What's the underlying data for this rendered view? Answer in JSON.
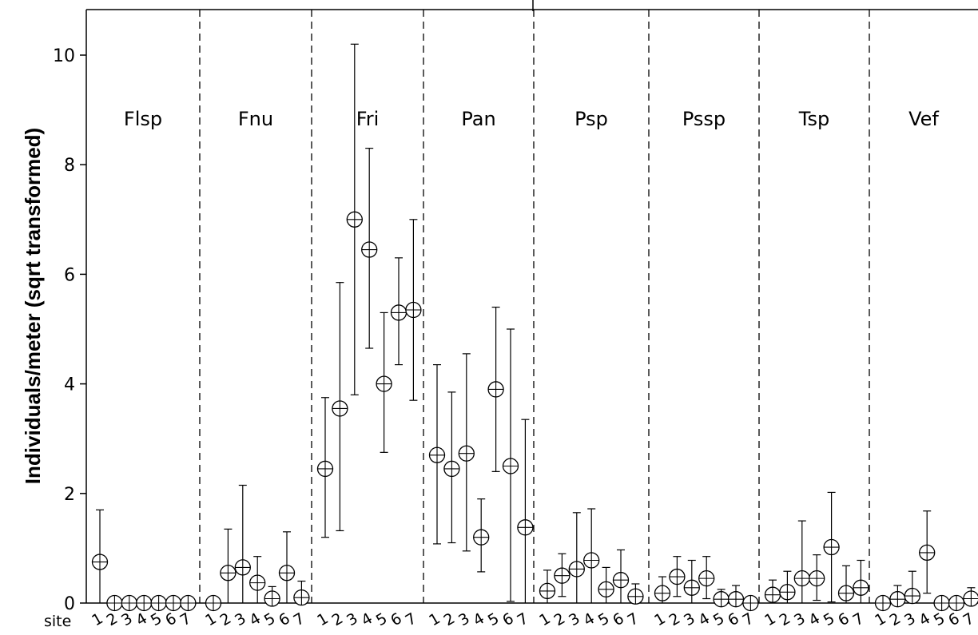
{
  "chart_data": {
    "type": "scatter",
    "title": "",
    "xlabel": "",
    "ylabel": "Individuals/meter  (sqrt transformed)",
    "x_axis_prefix": "site",
    "sites": [
      "1",
      "2",
      "3",
      "4",
      "5",
      "6",
      "7"
    ],
    "ylim": [
      0,
      10.9
    ],
    "yticks": [
      0,
      2,
      4,
      6,
      8,
      10
    ],
    "grid": false,
    "marker": "circled-plus with error bars",
    "panels": [
      {
        "name": "Flsp",
        "values": [
          0.75,
          0,
          0,
          0,
          0,
          0,
          0
        ],
        "upper": [
          1.7,
          0,
          0,
          0,
          0,
          0,
          0
        ],
        "lower": [
          0,
          0,
          0,
          0,
          0,
          0,
          0
        ]
      },
      {
        "name": "Fnu",
        "values": [
          0,
          0.55,
          0.65,
          0.37,
          0.08,
          0.55,
          0.1
        ],
        "upper": [
          0,
          1.35,
          2.15,
          0.85,
          0.3,
          1.3,
          0.4
        ],
        "lower": [
          0,
          0,
          0,
          0,
          0,
          0,
          0
        ]
      },
      {
        "name": "Fri",
        "values": [
          2.45,
          3.55,
          7.0,
          6.45,
          4.0,
          5.3,
          5.35
        ],
        "upper": [
          3.75,
          5.85,
          10.2,
          8.3,
          5.3,
          6.3,
          7.0
        ],
        "lower": [
          1.2,
          1.32,
          3.8,
          4.65,
          2.75,
          4.35,
          3.7
        ]
      },
      {
        "name": "Pan",
        "values": [
          2.7,
          2.45,
          2.73,
          1.2,
          3.9,
          2.5,
          1.38
        ],
        "upper": [
          4.35,
          3.85,
          4.55,
          1.9,
          5.4,
          5.0,
          3.35
        ],
        "lower": [
          1.08,
          1.1,
          0.95,
          0.57,
          2.4,
          0.03,
          0
        ]
      },
      {
        "name": "Psp",
        "values": [
          0.22,
          0.5,
          0.62,
          0.78,
          0.25,
          0.42,
          0.12
        ],
        "upper": [
          0.6,
          0.9,
          1.65,
          1.72,
          0.65,
          0.97,
          0.35
        ],
        "lower": [
          0,
          0.12,
          0,
          0,
          0,
          0,
          0
        ]
      },
      {
        "name": "Pssp",
        "values": [
          0.18,
          0.48,
          0.28,
          0.45,
          0.07,
          0.07,
          0
        ],
        "upper": [
          0.48,
          0.85,
          0.78,
          0.85,
          0.25,
          0.32,
          0
        ],
        "lower": [
          0,
          0.12,
          0,
          0.08,
          0,
          0,
          0
        ]
      },
      {
        "name": "Tsp",
        "values": [
          0.15,
          0.2,
          0.45,
          0.45,
          1.02,
          0.18,
          0.28
        ],
        "upper": [
          0.42,
          0.58,
          1.5,
          0.88,
          2.02,
          0.68,
          0.78
        ],
        "lower": [
          0,
          0,
          0,
          0.05,
          0.02,
          0,
          0
        ]
      },
      {
        "name": "Vef",
        "values": [
          0,
          0.07,
          0.13,
          0.92,
          0,
          0,
          0.08
        ],
        "upper": [
          0,
          0.32,
          0.58,
          1.68,
          0,
          0,
          0.28
        ],
        "lower": [
          0,
          0,
          0,
          0.18,
          0,
          0,
          0
        ]
      }
    ]
  }
}
